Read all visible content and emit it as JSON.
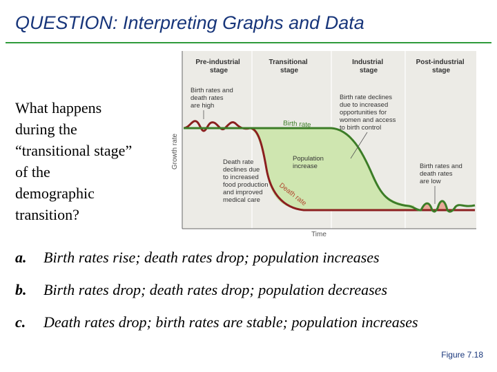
{
  "slide": {
    "title": "QUESTION: Interpreting Graphs and Data",
    "question": "What happens during the “transitional stage” of the demographic transition?",
    "answers": [
      {
        "letter": "a.",
        "text": "Birth rates rise; death rates drop; population increases"
      },
      {
        "letter": "b.",
        "text": "Birth rates drop; death rates drop; population decreases"
      },
      {
        "letter": "c.",
        "text": "Death rates drop; birth rates are stable; population increases"
      }
    ],
    "credit": "Figure 7.18"
  },
  "figure": {
    "stages": [
      {
        "line1": "Pre-industrial",
        "line2": "stage"
      },
      {
        "line1": "Transitional",
        "line2": "stage"
      },
      {
        "line1": "Industrial",
        "line2": "stage"
      },
      {
        "line1": "Post-industrial",
        "line2": "stage"
      }
    ],
    "y_axis_label": "Growth rate",
    "x_axis_label": "Time",
    "birth_rate_label": "Birth rate",
    "death_rate_label": "Death rate",
    "notes": {
      "pre_industrial": [
        "Birth rates and",
        "death rates",
        "are high"
      ],
      "death_decline": [
        "Death rate",
        "declines due",
        "to increased",
        "food production",
        "and improved",
        "medical care"
      ],
      "population_increase": [
        "Population",
        "increase"
      ],
      "birth_decline": [
        "Birth rate declines",
        "due to increased",
        "opportunities for",
        "women and access",
        "to birth control"
      ],
      "post_industrial": [
        "Birth rates and",
        "death rates",
        "are low"
      ]
    },
    "colors": {
      "birth_rate": "#3c7d27",
      "death_rate": "#8b1f1f",
      "population_fill": "#cfe6b0",
      "low_fill": "#e8a898",
      "panel_bg": "#ecebe6"
    }
  }
}
